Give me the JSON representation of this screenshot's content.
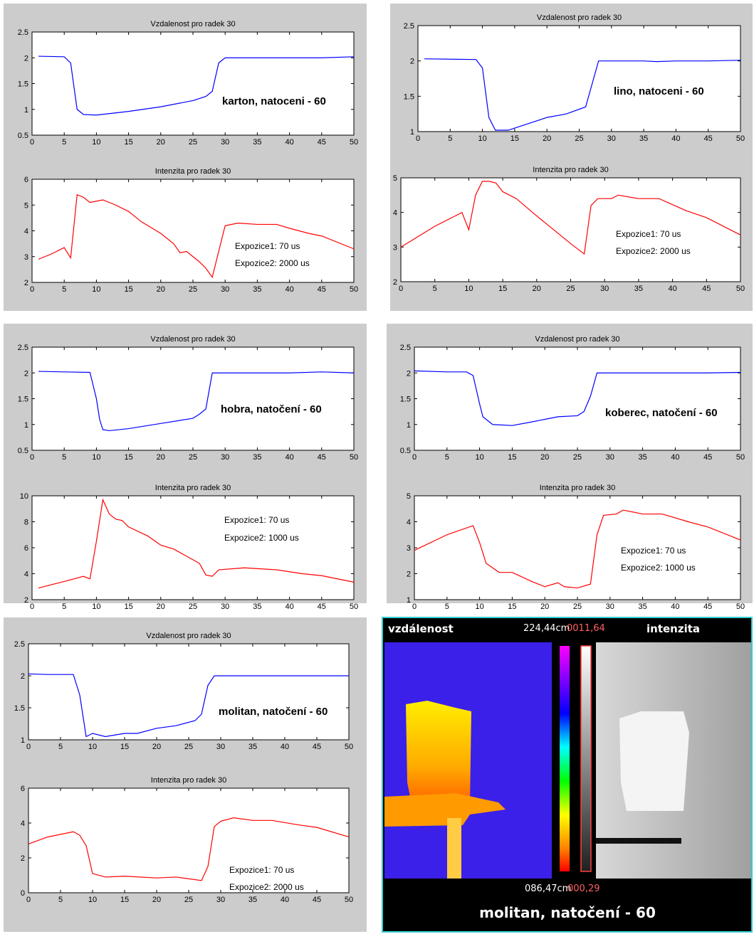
{
  "chart_data": [
    {
      "type": "line",
      "title": "Vzdalenost pro radek 30",
      "x": [
        1,
        5,
        6,
        7,
        8,
        10,
        15,
        20,
        25,
        27,
        28,
        29,
        30,
        35,
        40,
        45,
        50
      ],
      "values": [
        2.03,
        2.02,
        1.9,
        1.0,
        0.9,
        0.89,
        0.96,
        1.05,
        1.17,
        1.25,
        1.35,
        1.9,
        2.0,
        2.0,
        2.0,
        2.0,
        2.02
      ],
      "color": "#0000ff",
      "xlim": [
        0,
        50
      ],
      "ylim": [
        0.5,
        2.5
      ],
      "xticks": [
        0,
        5,
        10,
        15,
        20,
        25,
        30,
        35,
        40,
        45,
        50
      ],
      "yticks": [
        0.5,
        1,
        1.5,
        2,
        2.5
      ],
      "annotations": [
        "karton, natoceni - 60"
      ]
    },
    {
      "type": "line",
      "title": "Intenzita pro radek 30",
      "x": [
        1,
        3,
        5,
        6,
        7,
        8,
        9,
        11,
        13,
        15,
        17,
        20,
        22,
        23,
        24,
        26,
        27,
        28,
        30,
        32,
        35,
        38,
        40,
        43,
        45,
        50
      ],
      "values": [
        2.9,
        3.1,
        3.35,
        2.95,
        5.4,
        5.3,
        5.1,
        5.2,
        5.0,
        4.75,
        4.35,
        3.9,
        3.5,
        3.15,
        3.2,
        2.8,
        2.55,
        2.2,
        4.2,
        4.3,
        4.25,
        4.25,
        4.1,
        3.9,
        3.8,
        3.3
      ],
      "color": "#ff0000",
      "xlim": [
        0,
        50
      ],
      "ylim": [
        2,
        6
      ],
      "xticks": [
        0,
        5,
        10,
        15,
        20,
        25,
        30,
        35,
        40,
        45,
        50
      ],
      "yticks": [
        2,
        3,
        4,
        5,
        6
      ],
      "annotations": [
        "Expozice1: 70 us",
        "Expozice2: 2000 us"
      ]
    },
    {
      "type": "line",
      "title": "Vzdalenost pro radek 30",
      "x": [
        1,
        9,
        10,
        11,
        12,
        14,
        15,
        20,
        23,
        26,
        28,
        35,
        37,
        40,
        45,
        50
      ],
      "values": [
        2.03,
        2.02,
        1.9,
        1.2,
        1.02,
        1.02,
        1.05,
        1.2,
        1.25,
        1.35,
        2.0,
        2.0,
        1.99,
        2.0,
        2.0,
        2.01
      ],
      "color": "#0000ff",
      "xlim": [
        0,
        50
      ],
      "ylim": [
        1,
        2.5
      ],
      "xticks": [
        0,
        5,
        10,
        15,
        20,
        25,
        30,
        35,
        40,
        45,
        50
      ],
      "yticks": [
        1,
        1.5,
        2,
        2.5
      ],
      "annotations": [
        "lino, natoceni - 60"
      ]
    },
    {
      "type": "line",
      "title": "Intenzita pro radek 30",
      "x": [
        0,
        5,
        9,
        10,
        11,
        12,
        13,
        14,
        15,
        17,
        20,
        25,
        27,
        28,
        29,
        31,
        32,
        35,
        38,
        42,
        45,
        50
      ],
      "values": [
        3.0,
        3.6,
        4.0,
        3.5,
        4.5,
        4.9,
        4.9,
        4.85,
        4.6,
        4.4,
        3.9,
        3.1,
        2.8,
        4.2,
        4.4,
        4.4,
        4.5,
        4.4,
        4.4,
        4.05,
        3.85,
        3.35
      ],
      "color": "#ff0000",
      "xlim": [
        0,
        50
      ],
      "ylim": [
        2,
        5
      ],
      "xticks": [
        0,
        5,
        10,
        15,
        20,
        25,
        30,
        35,
        40,
        45,
        50
      ],
      "yticks": [
        2,
        3,
        4,
        5
      ],
      "annotations": [
        "Expozice1: 70 us",
        "Expozice2: 2000 us"
      ]
    },
    {
      "type": "line",
      "title": "Vzdalenost pro radek 30",
      "x": [
        1,
        5,
        9,
        10,
        10.5,
        11,
        12,
        15,
        20,
        25,
        26,
        27,
        28,
        35,
        40,
        45,
        50
      ],
      "values": [
        2.03,
        2.02,
        2.01,
        1.5,
        1.1,
        0.9,
        0.88,
        0.92,
        1.02,
        1.12,
        1.2,
        1.3,
        2.0,
        2.0,
        2.0,
        2.02,
        2.0
      ],
      "color": "#0000ff",
      "xlim": [
        0,
        50
      ],
      "ylim": [
        0.5,
        2.5
      ],
      "xticks": [
        0,
        5,
        10,
        15,
        20,
        25,
        30,
        35,
        40,
        45,
        50
      ],
      "yticks": [
        0.5,
        1,
        1.5,
        2,
        2.5
      ],
      "annotations": [
        "hobra, natočení - 60"
      ]
    },
    {
      "type": "line",
      "title": "Intenzita pro radek 30",
      "x": [
        1,
        5,
        8,
        9,
        10,
        11,
        12,
        13,
        14,
        15,
        18,
        20,
        22,
        26,
        27,
        28,
        29,
        33,
        38,
        42,
        45,
        50
      ],
      "values": [
        2.9,
        3.4,
        3.8,
        3.6,
        6.5,
        9.7,
        8.6,
        8.2,
        8.1,
        7.6,
        6.9,
        6.2,
        5.9,
        4.8,
        3.9,
        3.8,
        4.3,
        4.45,
        4.3,
        4.0,
        3.85,
        3.35
      ],
      "color": "#ff0000",
      "xlim": [
        0,
        50
      ],
      "ylim": [
        2,
        10
      ],
      "xticks": [
        0,
        5,
        10,
        15,
        20,
        25,
        30,
        35,
        40,
        45,
        50
      ],
      "yticks": [
        2,
        4,
        6,
        8,
        10
      ],
      "annotations": [
        "Expozice1: 70 us",
        "Expozice2: 1000 us"
      ]
    },
    {
      "type": "line",
      "title": "Vzdalenost pro radek 30",
      "x": [
        0,
        5,
        8,
        9,
        10,
        10.5,
        12,
        15,
        18,
        20,
        22,
        25,
        26,
        27,
        28,
        35,
        40,
        45,
        50
      ],
      "values": [
        2.04,
        2.02,
        2.02,
        1.95,
        1.4,
        1.15,
        1.0,
        0.98,
        1.05,
        1.1,
        1.15,
        1.17,
        1.25,
        1.55,
        2.0,
        2.0,
        2.0,
        2.0,
        2.01
      ],
      "color": "#0000ff",
      "xlim": [
        0,
        50
      ],
      "ylim": [
        0.5,
        2.5
      ],
      "xticks": [
        0,
        5,
        10,
        15,
        20,
        25,
        30,
        35,
        40,
        45,
        50
      ],
      "yticks": [
        0.5,
        1,
        1.5,
        2,
        2.5
      ],
      "annotations": [
        "koberec, natočení - 60"
      ]
    },
    {
      "type": "line",
      "title": "Intenzita pro radek 30",
      "x": [
        0,
        5,
        9,
        10,
        11,
        13,
        15,
        18,
        20,
        22,
        23,
        25,
        27,
        28,
        29,
        31,
        32,
        35,
        38,
        42,
        45,
        50
      ],
      "values": [
        2.9,
        3.5,
        3.85,
        3.2,
        2.4,
        2.05,
        2.05,
        1.7,
        1.5,
        1.65,
        1.5,
        1.45,
        1.6,
        3.5,
        4.25,
        4.3,
        4.45,
        4.3,
        4.3,
        4.0,
        3.8,
        3.3
      ],
      "color": "#ff0000",
      "xlim": [
        0,
        50
      ],
      "ylim": [
        1,
        5
      ],
      "xticks": [
        0,
        5,
        10,
        15,
        20,
        25,
        30,
        35,
        40,
        45,
        50
      ],
      "yticks": [
        1,
        2,
        3,
        4,
        5
      ],
      "annotations": [
        "Expozice1: 70 us",
        "Expozice2: 1000 us"
      ]
    },
    {
      "type": "line",
      "title": "Vzdalenost pro radek 30",
      "x": [
        0,
        3,
        7,
        8,
        9,
        10,
        12,
        15,
        17,
        20,
        23,
        26,
        27,
        28,
        29,
        35,
        40,
        50
      ],
      "values": [
        2.03,
        2.02,
        2.02,
        1.7,
        1.05,
        1.1,
        1.05,
        1.1,
        1.1,
        1.18,
        1.22,
        1.3,
        1.4,
        1.85,
        2.0,
        2.0,
        2.0,
        2.0
      ],
      "color": "#0000ff",
      "xlim": [
        0,
        50
      ],
      "ylim": [
        1,
        2.5
      ],
      "xticks": [
        0,
        5,
        10,
        15,
        20,
        25,
        30,
        35,
        40,
        45,
        50
      ],
      "yticks": [
        1,
        1.5,
        2,
        2.5
      ],
      "annotations": [
        "molitan, natočení - 60"
      ]
    },
    {
      "type": "line",
      "title": "Intenzita pro radek 30",
      "x": [
        0,
        3,
        7,
        8,
        9,
        10,
        12,
        15,
        20,
        23,
        27,
        28,
        29,
        30,
        32,
        35,
        38,
        42,
        45,
        50
      ],
      "values": [
        2.8,
        3.2,
        3.5,
        3.3,
        2.7,
        1.1,
        0.9,
        0.95,
        0.85,
        0.9,
        0.7,
        1.5,
        3.8,
        4.1,
        4.3,
        4.15,
        4.15,
        3.9,
        3.75,
        3.2
      ],
      "color": "#ff0000",
      "xlim": [
        0,
        50
      ],
      "ylim": [
        0,
        6
      ],
      "xticks": [
        0,
        5,
        10,
        15,
        20,
        25,
        30,
        35,
        40,
        45,
        50
      ],
      "yticks": [
        0,
        2,
        4,
        6
      ],
      "annotations": [
        "Expozice1: 70 us",
        "Expozice2: 2000 us"
      ]
    }
  ],
  "image_panel": {
    "left_label": "vzdálenost",
    "max_distance": "224,44cm",
    "max_intensity": "0011,64",
    "right_label": "intenzita",
    "min_distance": "086,47cm",
    "min_intensity": "000,29",
    "caption": "molitan, natočení - 60"
  }
}
